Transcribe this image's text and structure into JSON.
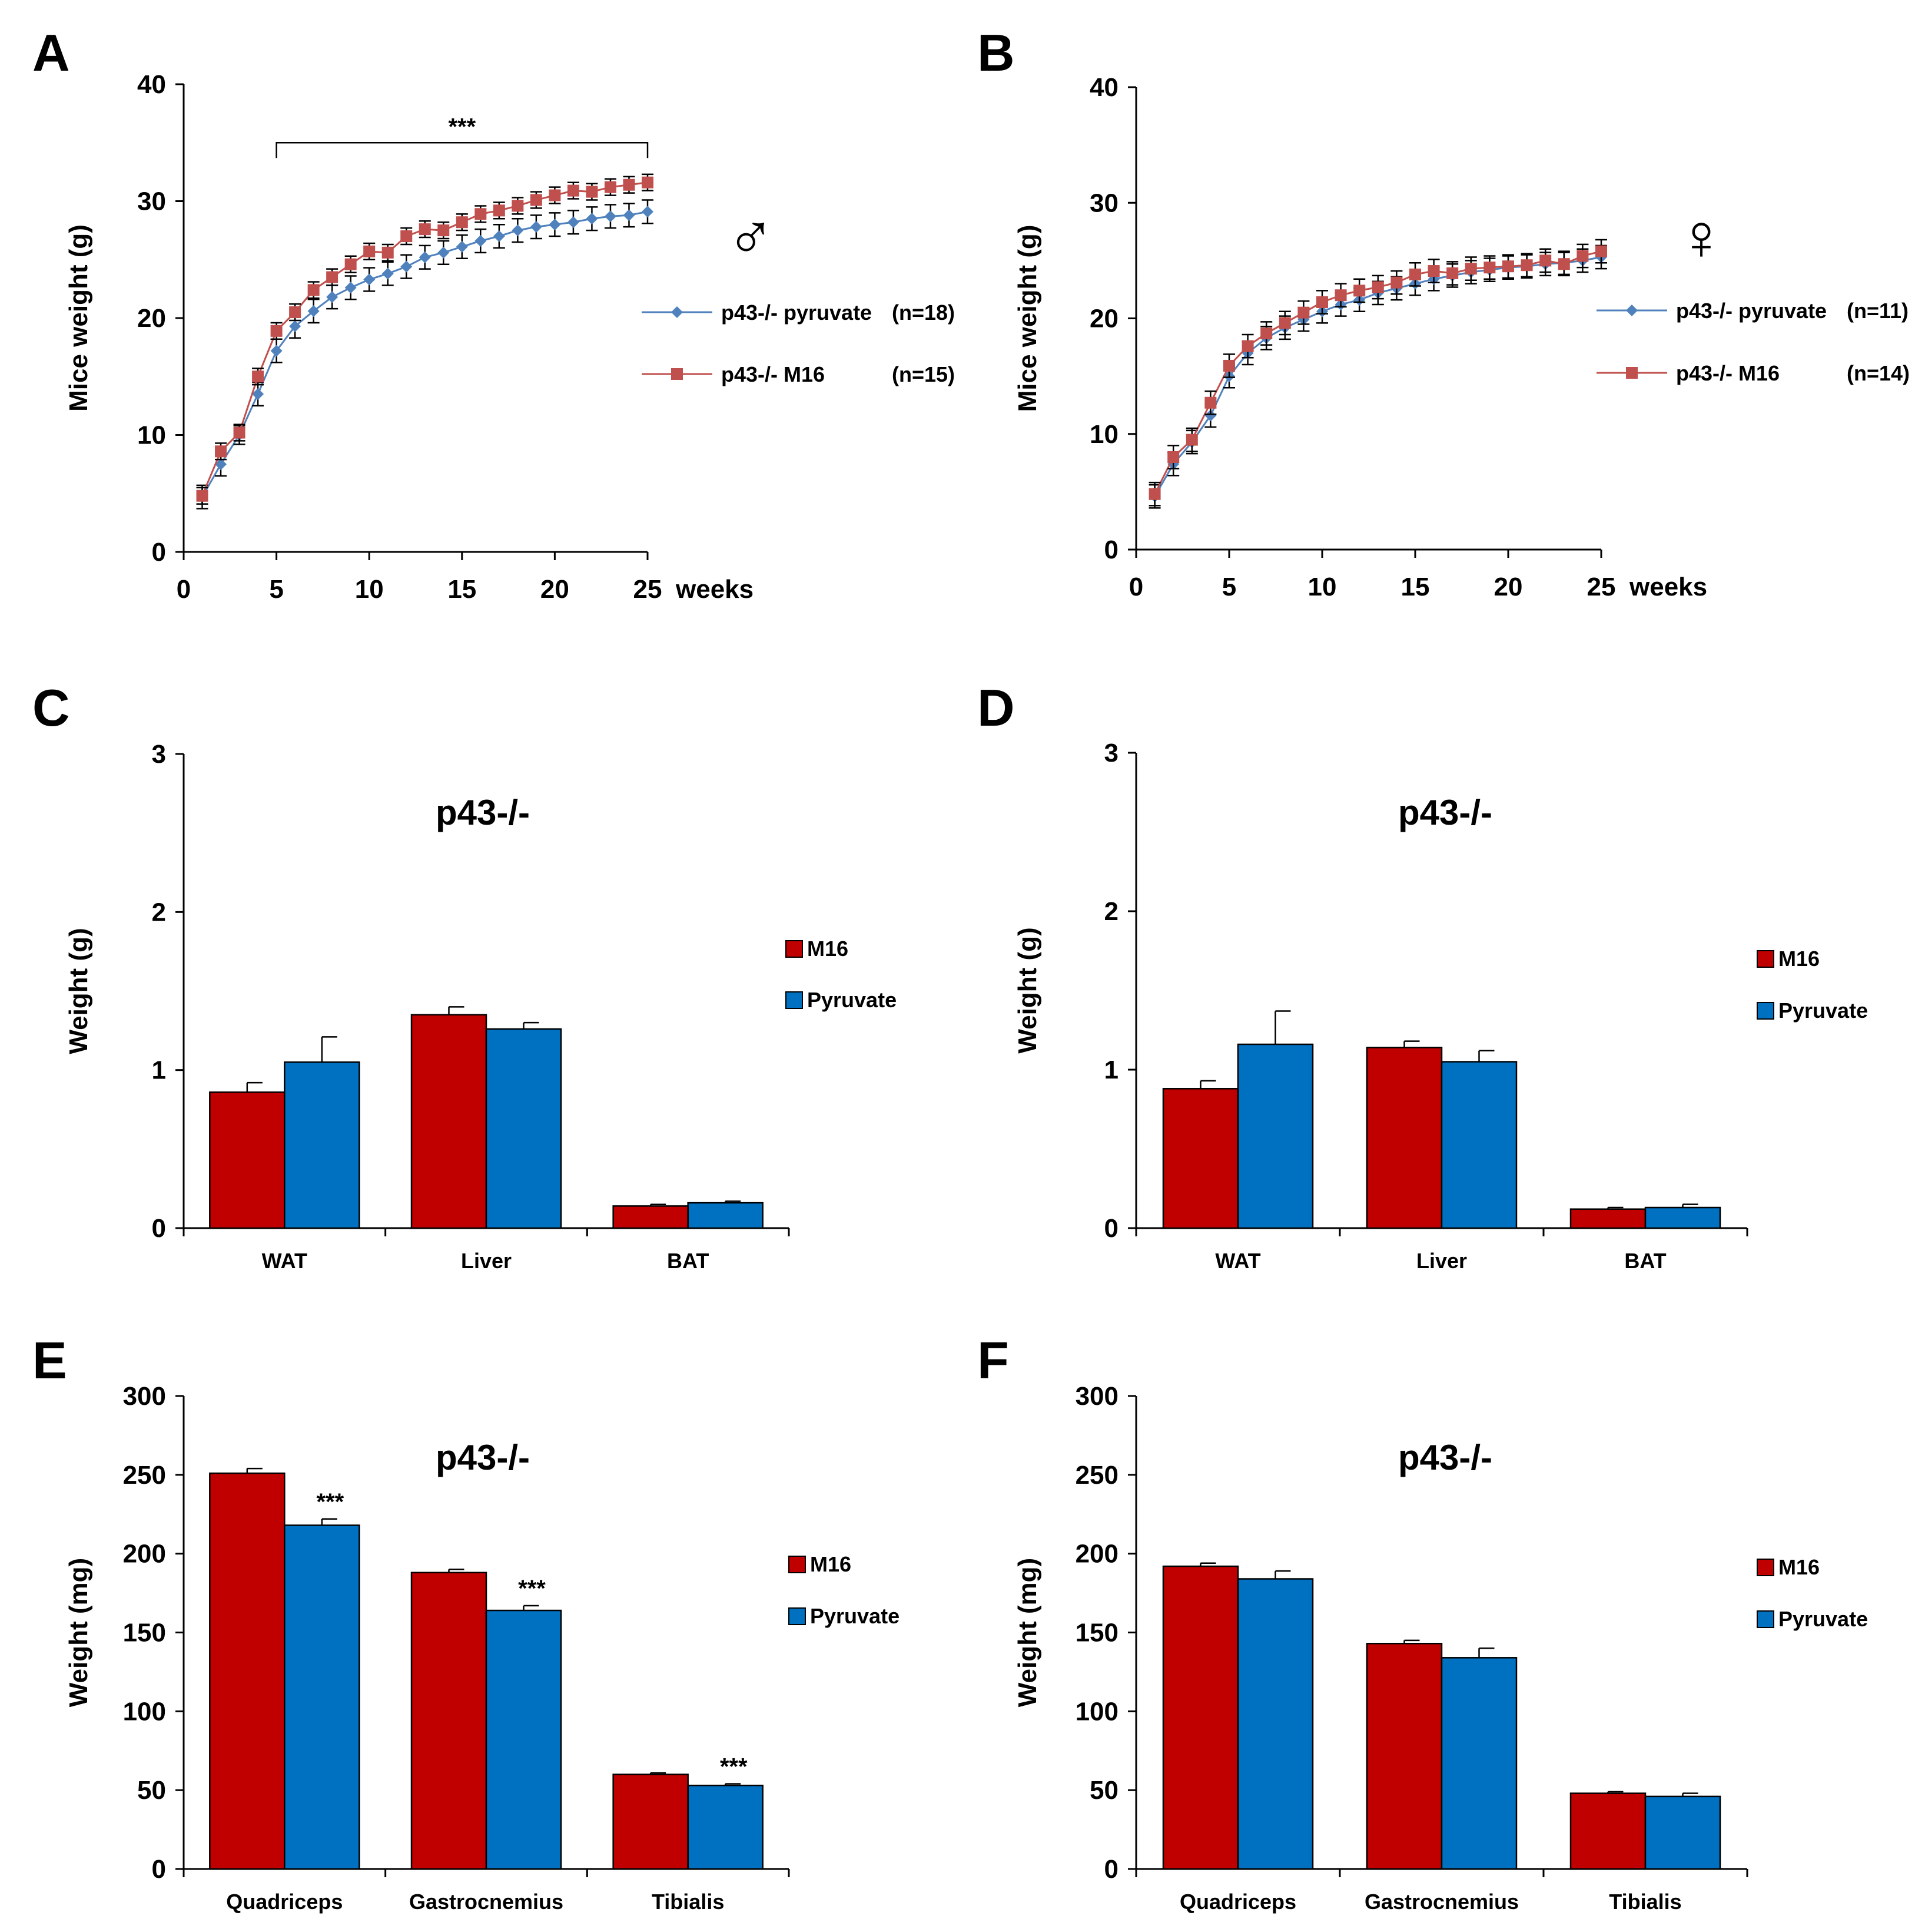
{
  "colors": {
    "m16_line": "#C0504D",
    "pyruvate_line": "#4F81BD",
    "m16_bar": "#C00000",
    "pyruvate_bar": "#0070C0"
  },
  "chart_data": [
    {
      "id": "A",
      "panel": "A",
      "type": "line",
      "sex_symbol": "♂",
      "ylabel": "Mice weight (g)",
      "xlabel": "",
      "x_unit": "weeks",
      "xlim": [
        0,
        25
      ],
      "ylim": [
        0,
        40
      ],
      "xticks": [
        0,
        5,
        10,
        15,
        20,
        25
      ],
      "yticks": [
        0,
        10,
        20,
        30,
        40
      ],
      "x": [
        1,
        2,
        3,
        4,
        5,
        6,
        7,
        8,
        9,
        10,
        11,
        12,
        13,
        14,
        15,
        16,
        17,
        18,
        19,
        20,
        21,
        22,
        23,
        24,
        25
      ],
      "series": [
        {
          "key": "pyruvate",
          "name": "p43-/- pyruvate",
          "n": "(n=18)",
          "color_key": "pyruvate_line",
          "marker": "diamond",
          "values": [
            4.7,
            7.5,
            10.0,
            13.5,
            17.2,
            19.3,
            20.6,
            21.8,
            22.6,
            23.3,
            23.8,
            24.4,
            25.2,
            25.6,
            26.1,
            26.6,
            27.0,
            27.5,
            27.8,
            28.0,
            28.2,
            28.5,
            28.7,
            28.8,
            29.1
          ],
          "err": [
            1.0,
            1.0,
            0.8,
            1.0,
            1.0,
            1.0,
            1.0,
            1.0,
            1.0,
            1.0,
            1.0,
            1.0,
            1.0,
            1.0,
            1.0,
            1.0,
            1.0,
            1.0,
            1.0,
            1.0,
            1.0,
            1.0,
            1.0,
            1.0,
            1.0
          ]
        },
        {
          "key": "m16",
          "name": "p43-/- M16",
          "n": "(n=15)",
          "color_key": "m16_line",
          "marker": "square",
          "values": [
            4.8,
            8.6,
            10.2,
            15.0,
            18.9,
            20.5,
            22.4,
            23.5,
            24.6,
            25.7,
            25.6,
            27.0,
            27.6,
            27.5,
            28.2,
            28.9,
            29.2,
            29.6,
            30.1,
            30.5,
            30.9,
            30.8,
            31.2,
            31.4,
            31.6
          ],
          "err": [
            0.7,
            0.7,
            0.7,
            0.7,
            0.7,
            0.7,
            0.7,
            0.7,
            0.7,
            0.7,
            0.7,
            0.7,
            0.7,
            0.7,
            0.7,
            0.7,
            0.7,
            0.7,
            0.7,
            0.7,
            0.7,
            0.7,
            0.7,
            0.7,
            0.7
          ]
        }
      ],
      "significance": {
        "label": "***",
        "x_from": 5,
        "x_to": 25,
        "y": 35
      }
    },
    {
      "id": "B",
      "panel": "B",
      "type": "line",
      "sex_symbol": "♀",
      "ylabel": "Mice weight (g)",
      "xlabel": "",
      "x_unit": "weeks",
      "xlim": [
        0,
        25
      ],
      "ylim": [
        0,
        40
      ],
      "xticks": [
        0,
        5,
        10,
        15,
        20,
        25
      ],
      "yticks": [
        0,
        10,
        20,
        30,
        40
      ],
      "x": [
        1,
        2,
        3,
        4,
        5,
        6,
        7,
        8,
        9,
        10,
        11,
        12,
        13,
        14,
        15,
        16,
        17,
        18,
        19,
        20,
        21,
        22,
        23,
        24,
        25
      ],
      "series": [
        {
          "key": "pyruvate",
          "name": "p43-/- pyruvate",
          "n": "(n=11)",
          "color_key": "pyruvate_line",
          "marker": "diamond",
          "values": [
            4.6,
            7.4,
            9.3,
            11.6,
            15.0,
            17.0,
            18.3,
            19.2,
            19.9,
            20.6,
            21.2,
            21.6,
            22.2,
            22.6,
            23.0,
            23.4,
            23.7,
            24.0,
            24.2,
            24.4,
            24.5,
            24.7,
            24.8,
            25.0,
            25.3
          ],
          "err": [
            1.0,
            1.0,
            1.0,
            1.0,
            1.0,
            1.0,
            1.0,
            1.0,
            1.0,
            1.0,
            1.0,
            1.0,
            1.0,
            1.0,
            1.0,
            1.0,
            1.0,
            1.0,
            1.0,
            1.0,
            1.0,
            1.0,
            1.0,
            1.0,
            1.0
          ]
        },
        {
          "key": "m16",
          "name": "p43-/- M16",
          "n": "(n=14)",
          "color_key": "m16_line",
          "marker": "square",
          "values": [
            4.8,
            8.0,
            9.5,
            12.7,
            15.9,
            17.6,
            18.7,
            19.6,
            20.5,
            21.4,
            22.0,
            22.4,
            22.7,
            23.1,
            23.8,
            24.1,
            23.9,
            24.3,
            24.4,
            24.5,
            24.6,
            25.0,
            24.7,
            25.4,
            25.8
          ],
          "err": [
            1.0,
            1.0,
            1.0,
            1.0,
            1.0,
            1.0,
            1.0,
            1.0,
            1.0,
            1.0,
            1.0,
            1.0,
            1.0,
            1.0,
            1.0,
            1.0,
            1.0,
            1.0,
            1.0,
            1.0,
            1.0,
            1.0,
            1.0,
            1.0,
            1.0
          ]
        }
      ]
    },
    {
      "id": "C",
      "panel": "C",
      "type": "bar",
      "title": "p43-/-",
      "ylabel": "Weight (g)",
      "ylim": [
        0,
        3
      ],
      "yticks": [
        0,
        1,
        2,
        3
      ],
      "categories": [
        "WAT",
        "Liver",
        "BAT"
      ],
      "series": [
        {
          "key": "m16",
          "name": "M16",
          "color_key": "m16_bar",
          "values": [
            0.86,
            1.35,
            0.14
          ],
          "err": [
            0.06,
            0.05,
            0.01
          ],
          "sig": [
            "",
            "",
            ""
          ]
        },
        {
          "key": "pyruvate",
          "name": "Pyruvate",
          "color_key": "pyruvate_bar",
          "values": [
            1.05,
            1.26,
            0.16
          ],
          "err": [
            0.16,
            0.04,
            0.01
          ],
          "sig": [
            "",
            "",
            ""
          ]
        }
      ]
    },
    {
      "id": "D",
      "panel": "D",
      "type": "bar",
      "title": "p43-/-",
      "ylabel": "Weight (g)",
      "ylim": [
        0,
        3
      ],
      "yticks": [
        0,
        1,
        2,
        3
      ],
      "categories": [
        "WAT",
        "Liver",
        "BAT"
      ],
      "series": [
        {
          "key": "m16",
          "name": "M16",
          "color_key": "m16_bar",
          "values": [
            0.88,
            1.14,
            0.12
          ],
          "err": [
            0.05,
            0.04,
            0.01
          ],
          "sig": [
            "",
            "",
            ""
          ]
        },
        {
          "key": "pyruvate",
          "name": "Pyruvate",
          "color_key": "pyruvate_bar",
          "values": [
            1.16,
            1.05,
            0.13
          ],
          "err": [
            0.21,
            0.07,
            0.02
          ],
          "sig": [
            "",
            "",
            ""
          ]
        }
      ]
    },
    {
      "id": "E",
      "panel": "E",
      "type": "bar",
      "title": "p43-/-",
      "ylabel": "Weight (mg)",
      "ylim": [
        0,
        300
      ],
      "yticks": [
        0,
        50,
        100,
        150,
        200,
        250,
        300
      ],
      "categories": [
        "Quadriceps",
        "Gastrocnemius",
        "Tibialis"
      ],
      "series": [
        {
          "key": "m16",
          "name": "M16",
          "color_key": "m16_bar",
          "values": [
            251,
            188,
            60
          ],
          "err": [
            3,
            2,
            1
          ],
          "sig": [
            "",
            "",
            ""
          ]
        },
        {
          "key": "pyruvate",
          "name": "Pyruvate",
          "color_key": "pyruvate_bar",
          "values": [
            218,
            164,
            53
          ],
          "err": [
            4,
            3,
            1
          ],
          "sig": [
            "***",
            "***",
            "***"
          ]
        }
      ]
    },
    {
      "id": "F",
      "panel": "F",
      "type": "bar",
      "title": "p43-/-",
      "ylabel": "Weight (mg)",
      "ylim": [
        0,
        300
      ],
      "yticks": [
        0,
        50,
        100,
        150,
        200,
        250,
        300
      ],
      "categories": [
        "Quadriceps",
        "Gastrocnemius",
        "Tibialis"
      ],
      "series": [
        {
          "key": "m16",
          "name": "M16",
          "color_key": "m16_bar",
          "values": [
            192,
            143,
            48
          ],
          "err": [
            2,
            2,
            1
          ],
          "sig": [
            "",
            "",
            ""
          ]
        },
        {
          "key": "pyruvate",
          "name": "Pyruvate",
          "color_key": "pyruvate_bar",
          "values": [
            184,
            134,
            46
          ],
          "err": [
            5,
            6,
            2
          ],
          "sig": [
            "",
            "",
            ""
          ]
        }
      ]
    }
  ]
}
